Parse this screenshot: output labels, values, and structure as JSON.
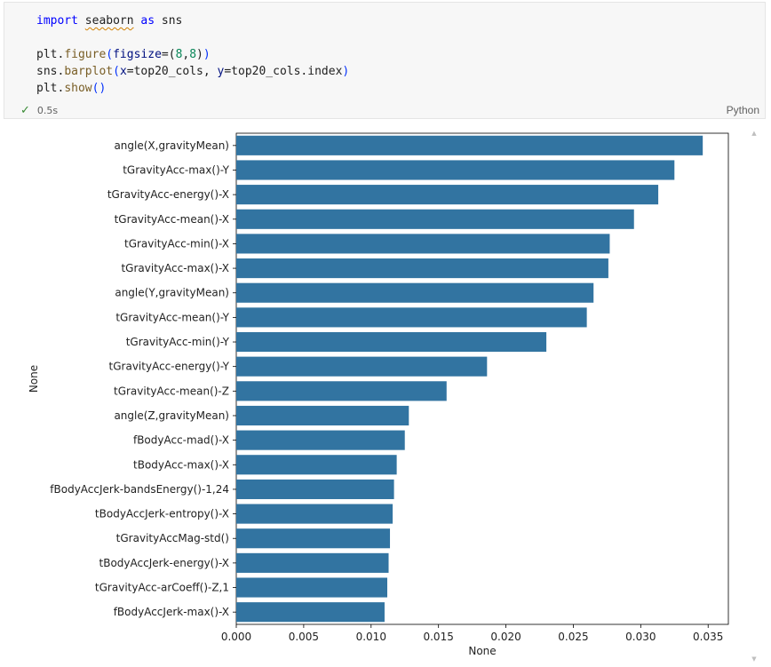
{
  "cell": {
    "code_lines": [
      [
        {
          "t": "import",
          "c": "kw"
        },
        {
          "t": " "
        },
        {
          "t": "seaborn",
          "c": "squiggle"
        },
        {
          "t": " "
        },
        {
          "t": "as",
          "c": "kw"
        },
        {
          "t": " sns"
        }
      ],
      [],
      [
        {
          "t": "plt"
        },
        {
          "t": "."
        },
        {
          "t": "figure",
          "c": "fn"
        },
        {
          "t": "(",
          "c": "punc"
        },
        {
          "t": "figsize",
          "c": "var"
        },
        {
          "t": "=("
        },
        {
          "t": "8",
          "c": "num"
        },
        {
          "t": ","
        },
        {
          "t": "8",
          "c": "num"
        },
        {
          "t": ")"
        },
        {
          "t": ")",
          "c": "punc"
        }
      ],
      [
        {
          "t": "sns"
        },
        {
          "t": "."
        },
        {
          "t": "barplot",
          "c": "fn"
        },
        {
          "t": "(",
          "c": "punc"
        },
        {
          "t": "x",
          "c": "var"
        },
        {
          "t": "=top20_cols, "
        },
        {
          "t": "y",
          "c": "var"
        },
        {
          "t": "=top20_cols.index"
        },
        {
          "t": ")",
          "c": "punc"
        }
      ],
      [
        {
          "t": "plt"
        },
        {
          "t": "."
        },
        {
          "t": "show",
          "c": "fn"
        },
        {
          "t": "()",
          "c": "punc"
        }
      ]
    ],
    "status": {
      "check_icon": "✓",
      "duration": "0.5s"
    },
    "language": "Python"
  },
  "colors": {
    "bar": "#3274a1"
  },
  "chart_data": {
    "type": "bar",
    "orientation": "horizontal",
    "categories": [
      "angle(X,gravityMean)",
      "tGravityAcc-max()-Y",
      "tGravityAcc-energy()-X",
      "tGravityAcc-mean()-X",
      "tGravityAcc-min()-X",
      "tGravityAcc-max()-X",
      "angle(Y,gravityMean)",
      "tGravityAcc-mean()-Y",
      "tGravityAcc-min()-Y",
      "tGravityAcc-energy()-Y",
      "tGravityAcc-mean()-Z",
      "angle(Z,gravityMean)",
      "fBodyAcc-mad()-X",
      "tBodyAcc-max()-X",
      "fBodyAccJerk-bandsEnergy()-1,24",
      "tBodyAccJerk-entropy()-X",
      "tGravityAccMag-std()",
      "tBodyAccJerk-energy()-X",
      "tGravityAcc-arCoeff()-Z,1",
      "fBodyAccJerk-max()-X"
    ],
    "values": [
      0.0346,
      0.0325,
      0.0313,
      0.0295,
      0.0277,
      0.0276,
      0.0265,
      0.026,
      0.023,
      0.0186,
      0.0156,
      0.0128,
      0.0125,
      0.0119,
      0.0117,
      0.0116,
      0.0114,
      0.0113,
      0.0112,
      0.011
    ],
    "xlabel": "None",
    "ylabel": "None",
    "xlim": [
      0,
      0.0365
    ],
    "xticks": [
      0.0,
      0.005,
      0.01,
      0.015,
      0.02,
      0.025,
      0.03,
      0.035
    ],
    "xtick_labels": [
      "0.000",
      "0.005",
      "0.010",
      "0.015",
      "0.020",
      "0.025",
      "0.030",
      "0.035"
    ],
    "grid": false
  }
}
